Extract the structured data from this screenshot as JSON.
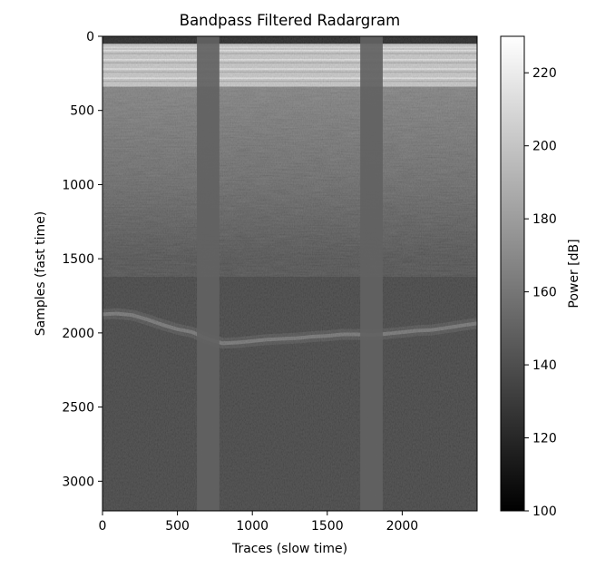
{
  "chart_data": {
    "type": "heatmap",
    "title": "Bandpass Filtered Radargram",
    "xlabel": "Traces (slow time)",
    "ylabel": "Samples (fast time)",
    "xlim": [
      0,
      2500
    ],
    "ylim": [
      3200,
      0
    ],
    "xticks": [
      0,
      500,
      1000,
      1500,
      2000
    ],
    "yticks": [
      0,
      500,
      1000,
      1500,
      2000,
      2500,
      3000
    ],
    "colormap": "gray",
    "colorbar": {
      "label": "Power [dB]",
      "range": [
        100,
        230
      ],
      "ticks": [
        100,
        120,
        140,
        160,
        180,
        200,
        220
      ]
    },
    "features": {
      "top_dark_band": {
        "sample_range": [
          0,
          50
        ],
        "power_db": 112
      },
      "bright_layer_bands": {
        "sample_range": [
          50,
          340
        ],
        "power_db": 200
      },
      "surface_clutter": {
        "sample_range": [
          340,
          1400
        ],
        "power_db": 150
      },
      "noise_floor": {
        "sample_range": [
          1500,
          3200
        ],
        "power_db": 128
      },
      "bed_reflector": {
        "traces": [
          0,
          100,
          200,
          300,
          400,
          500,
          600,
          700,
          800,
          900,
          1000,
          1100,
          1200,
          1300,
          1400,
          1500,
          1600,
          1700,
          1800,
          1900,
          2000,
          2100,
          2200,
          2300,
          2400,
          2500
        ],
        "samples": [
          1875,
          1870,
          1880,
          1910,
          1945,
          1975,
          1995,
          2040,
          2070,
          2065,
          2055,
          2045,
          2040,
          2035,
          2025,
          2020,
          2010,
          2010,
          2015,
          2005,
          1995,
          1985,
          1980,
          1965,
          1950,
          1935
        ],
        "power_db": 155
      },
      "constant_gap_columns": [
        {
          "trace_range": [
            630,
            780
          ],
          "power_db": 150
        },
        {
          "trace_range": [
            1720,
            1870
          ],
          "power_db": 150
        }
      ]
    }
  }
}
